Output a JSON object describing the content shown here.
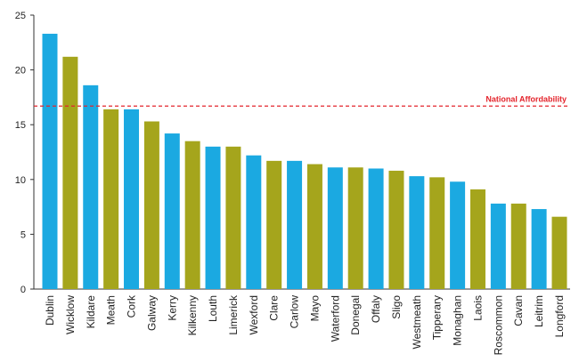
{
  "chart_data": {
    "type": "bar",
    "title": "",
    "xlabel": "",
    "ylabel": "",
    "ylim": [
      0,
      25
    ],
    "yticks": [
      0,
      5,
      10,
      15,
      20,
      25
    ],
    "grid": false,
    "categories": [
      "Dublin",
      "Wicklow",
      "Kildare",
      "Meath",
      "Cork",
      "Galway",
      "Kerry",
      "Kilkenny",
      "Louth",
      "Limerick",
      "Wexford",
      "Clare",
      "Carlow",
      "Mayo",
      "Waterford",
      "Donegal",
      "Offaly",
      "Sligo",
      "Westmeath",
      "Tipperary",
      "Monaghan",
      "Laois",
      "Roscommon",
      "Cavan",
      "Leitrim",
      "Longford"
    ],
    "values": [
      23.3,
      21.2,
      18.6,
      16.4,
      16.4,
      15.3,
      14.2,
      13.5,
      13.0,
      13.0,
      12.2,
      11.7,
      11.7,
      11.4,
      11.1,
      11.1,
      11.0,
      10.8,
      10.3,
      10.2,
      9.8,
      9.1,
      7.8,
      7.8,
      7.3,
      6.6
    ],
    "bar_colors": [
      "#1ba9e1",
      "#a5a51c"
    ],
    "reference_line": {
      "label": "National Affordability",
      "value": 16.7,
      "color": "#e4252d"
    }
  }
}
